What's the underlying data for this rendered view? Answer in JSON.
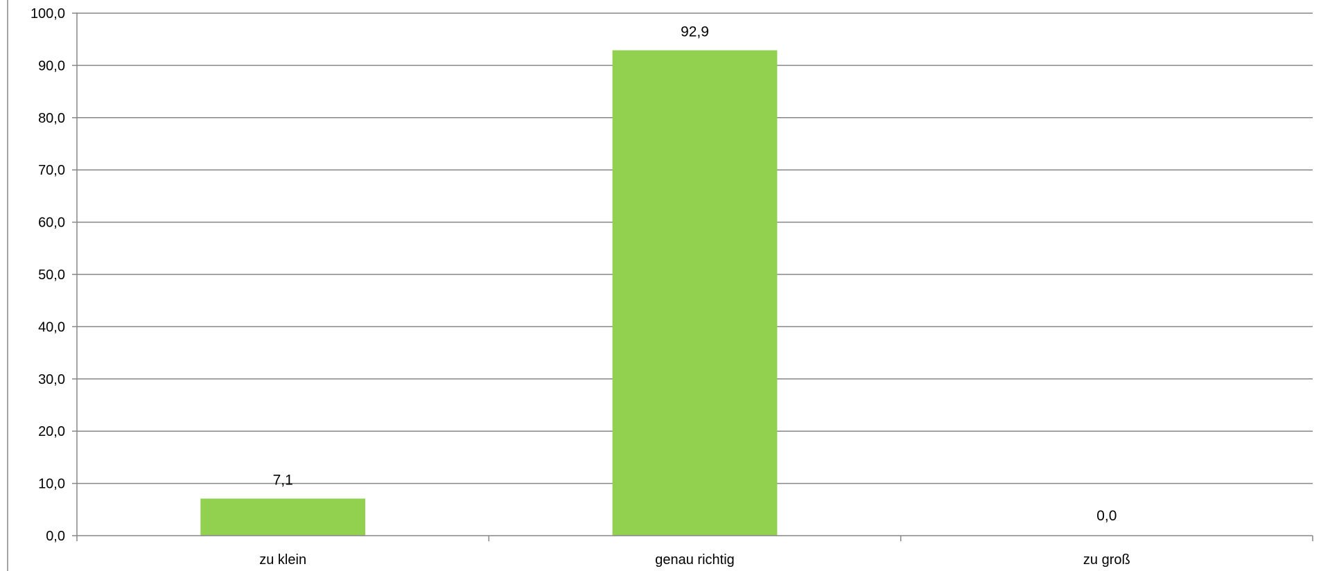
{
  "chart_data": {
    "type": "bar",
    "categories": [
      "zu klein",
      "genau richtig",
      "zu groß"
    ],
    "values": [
      7.1,
      92.9,
      0.0
    ],
    "value_labels": [
      "7,1",
      "92,9",
      "0,0"
    ],
    "ylim": [
      0,
      100
    ],
    "yticks": [
      0,
      10,
      20,
      30,
      40,
      50,
      60,
      70,
      80,
      90,
      100
    ],
    "ytick_labels": [
      "0,0",
      "10,0",
      "20,0",
      "30,0",
      "40,0",
      "50,0",
      "60,0",
      "70,0",
      "80,0",
      "90,0",
      "100,0"
    ],
    "grid": true,
    "legend": "none",
    "colors": {
      "bar": "#92d050",
      "grid": "#868686",
      "axis": "#868686"
    }
  }
}
